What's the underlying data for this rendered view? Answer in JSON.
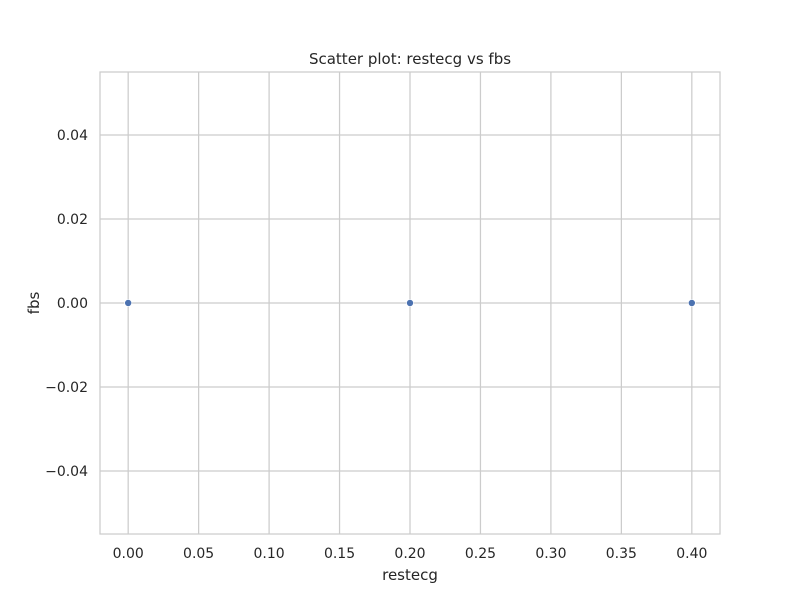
{
  "chart_data": {
    "type": "scatter",
    "title": "Scatter plot: restecg vs fbs",
    "xlabel": "restecg",
    "ylabel": "fbs",
    "x": [
      0.0,
      0.2,
      0.4
    ],
    "y": [
      0.0,
      0.0,
      0.0
    ],
    "xlim": [
      -0.02,
      0.42
    ],
    "ylim": [
      -0.055,
      0.055
    ],
    "xticks": [
      0.0,
      0.05,
      0.1,
      0.15,
      0.2,
      0.25,
      0.3,
      0.35,
      0.4
    ],
    "xtick_labels": [
      "0.00",
      "0.05",
      "0.10",
      "0.15",
      "0.20",
      "0.25",
      "0.30",
      "0.35",
      "0.40"
    ],
    "yticks": [
      -0.04,
      -0.02,
      0.0,
      0.02,
      0.04
    ],
    "ytick_labels": [
      "−0.04",
      "−0.02",
      "0.00",
      "0.02",
      "0.04"
    ],
    "grid": true,
    "colors": {
      "point": "#4c72b0",
      "grid": "#cccccc",
      "frame": "#cccccc",
      "text": "#262626",
      "background": "#ffffff"
    }
  }
}
